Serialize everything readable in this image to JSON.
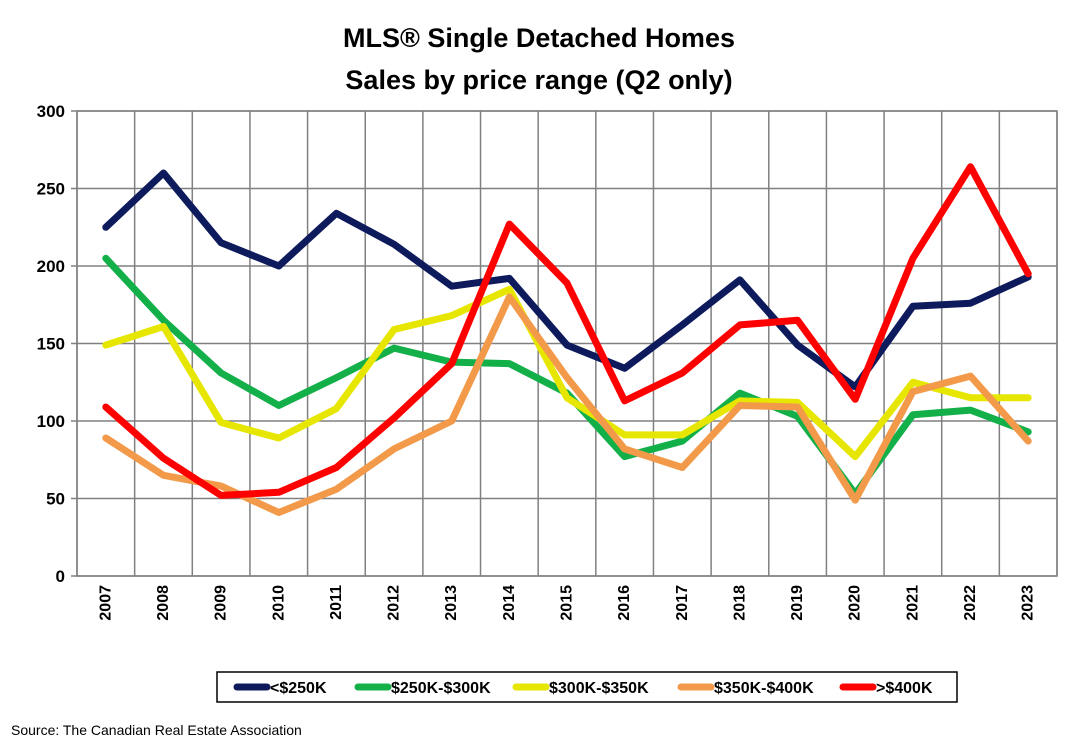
{
  "chart_data": {
    "type": "line",
    "title": "MLS® Single Detached Homes",
    "subtitle": "Sales by price range (Q2 only)",
    "xlabel": "",
    "ylabel": "",
    "x": [
      "2007",
      "2008",
      "2009",
      "2010",
      "2011",
      "2012",
      "2013",
      "2014",
      "2015",
      "2016",
      "2017",
      "2018",
      "2019",
      "2020",
      "2021",
      "2022",
      "2023"
    ],
    "ylim": [
      0,
      300
    ],
    "yticks": [
      0,
      50,
      100,
      150,
      200,
      250,
      300
    ],
    "grid": true,
    "legend_position": "bottom",
    "series": [
      {
        "name": "<$250K",
        "color": "#0d1a5c",
        "values": [
          225,
          260,
          215,
          200,
          234,
          214,
          187,
          192,
          149,
          134,
          162,
          191,
          149,
          122,
          174,
          176,
          193
        ]
      },
      {
        "name": "$250K-$300K",
        "color": "#13b04a",
        "values": [
          205,
          165,
          131,
          110,
          128,
          147,
          138,
          137,
          118,
          77,
          87,
          118,
          103,
          53,
          104,
          107,
          93
        ]
      },
      {
        "name": "$300K-$350K",
        "color": "#e6e600",
        "values": [
          149,
          161,
          99,
          89,
          108,
          159,
          168,
          185,
          115,
          91,
          91,
          113,
          112,
          77,
          125,
          115,
          115
        ]
      },
      {
        "name": "$350K-$400K",
        "color": "#f39a4a",
        "values": [
          89,
          65,
          58,
          41,
          56,
          82,
          100,
          180,
          128,
          82,
          70,
          110,
          109,
          49,
          119,
          129,
          87
        ]
      },
      {
        "name": ">$400K",
        "color": "#ff0000",
        "values": [
          109,
          76,
          52,
          54,
          70,
          102,
          137,
          227,
          189,
          113,
          131,
          162,
          165,
          114,
          205,
          264,
          195
        ]
      }
    ]
  },
  "source": "Source: The Canadian Real Estate Association"
}
